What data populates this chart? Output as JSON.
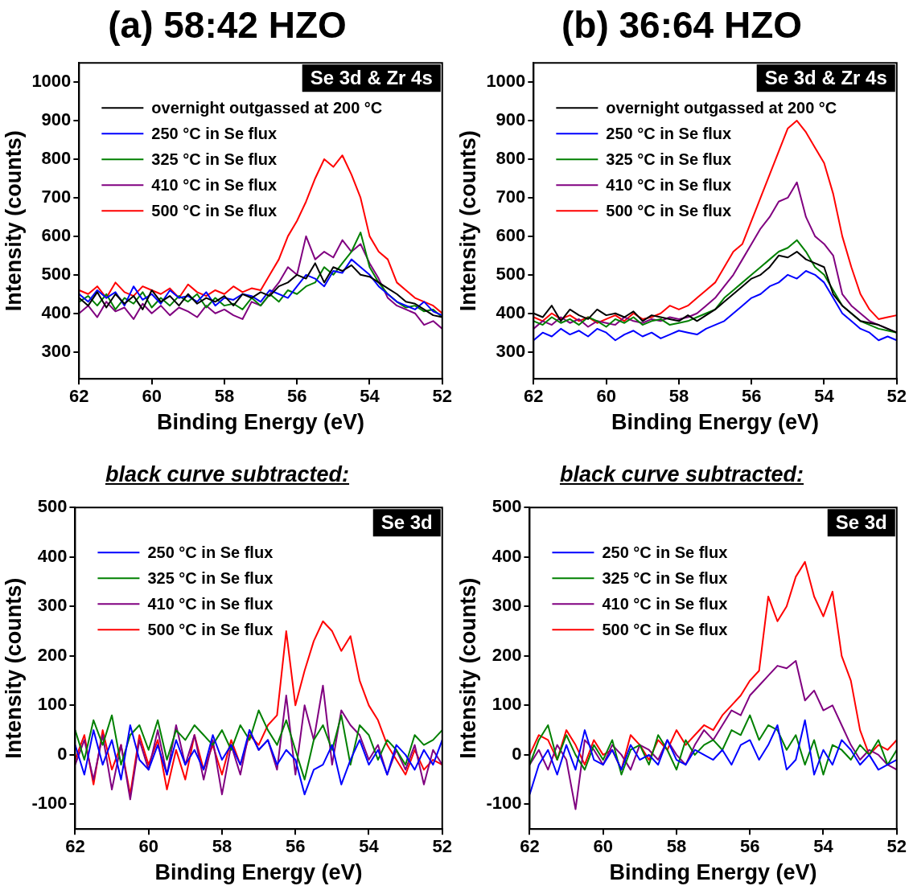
{
  "chart_data": [
    {
      "type": "line",
      "title": "(a) 58:42 HZO",
      "xlabel": "Binding Energy (eV)",
      "ylabel": "Intensity (counts)",
      "annotations": [
        "Se 3d & Zr 4s"
      ],
      "legend": "top left",
      "xlim": [
        62,
        52
      ],
      "xticks": [
        62,
        60,
        58,
        56,
        54,
        52
      ],
      "ylim": [
        230,
        1050
      ],
      "yticks": [
        300,
        400,
        500,
        600,
        700,
        800,
        900,
        1000
      ],
      "x": [
        62,
        61.75,
        61.5,
        61.25,
        61,
        60.75,
        60.5,
        60.25,
        60,
        59.75,
        59.5,
        59.25,
        59,
        58.75,
        58.5,
        58.25,
        58,
        57.75,
        57.5,
        57.25,
        57,
        56.75,
        56.5,
        56.25,
        56,
        55.75,
        55.5,
        55.25,
        55,
        54.75,
        54.5,
        54.25,
        54,
        53.75,
        53.5,
        53.25,
        53,
        52.75,
        52.5,
        52.25,
        52
      ],
      "series": [
        {
          "name": "overnight outgassed at 200 °C",
          "color": "#000000",
          "values": [
            440,
            420,
            455,
            415,
            450,
            425,
            445,
            410,
            460,
            430,
            445,
            420,
            450,
            425,
            440,
            430,
            445,
            420,
            450,
            440,
            455,
            445,
            470,
            480,
            500,
            490,
            530,
            480,
            520,
            510,
            525,
            500,
            495,
            480,
            465,
            450,
            430,
            425,
            410,
            395,
            390
          ]
        },
        {
          "name": "250 °C in Se flux",
          "color": "#0000ff",
          "values": [
            450,
            430,
            460,
            440,
            455,
            420,
            470,
            435,
            450,
            425,
            460,
            440,
            445,
            430,
            455,
            420,
            440,
            435,
            450,
            445,
            430,
            460,
            450,
            440,
            470,
            500,
            490,
            470,
            510,
            505,
            540,
            520,
            500,
            470,
            450,
            430,
            420,
            410,
            430,
            405,
            395
          ]
        },
        {
          "name": "325 °C in Se flux",
          "color": "#008000",
          "values": [
            430,
            445,
            420,
            450,
            410,
            440,
            425,
            455,
            415,
            440,
            420,
            445,
            430,
            450,
            415,
            440,
            420,
            425,
            410,
            440,
            420,
            450,
            430,
            460,
            450,
            470,
            480,
            520,
            500,
            530,
            560,
            610,
            520,
            480,
            450,
            430,
            415,
            420,
            405,
            410,
            390
          ]
        },
        {
          "name": "410 °C in Se flux",
          "color": "#800080",
          "values": [
            400,
            420,
            390,
            430,
            405,
            415,
            385,
            425,
            400,
            420,
            395,
            415,
            405,
            390,
            420,
            400,
            410,
            395,
            385,
            430,
            420,
            450,
            480,
            520,
            500,
            600,
            540,
            560,
            545,
            590,
            560,
            580,
            530,
            490,
            440,
            420,
            410,
            400,
            370,
            380,
            360
          ]
        },
        {
          "name": "500 °C in Se flux",
          "color": "#ff0000",
          "values": [
            460,
            450,
            470,
            440,
            480,
            455,
            445,
            470,
            460,
            450,
            465,
            440,
            475,
            455,
            445,
            460,
            450,
            470,
            455,
            465,
            460,
            500,
            540,
            600,
            640,
            690,
            750,
            800,
            780,
            810,
            760,
            700,
            600,
            560,
            540,
            480,
            460,
            440,
            430,
            420,
            400
          ]
        }
      ]
    },
    {
      "type": "line",
      "title": "(b) 36:64 HZO",
      "xlabel": "Binding Energy (eV)",
      "ylabel": "Intensity (counts)",
      "annotations": [
        "Se 3d & Zr 4s"
      ],
      "legend": "top left",
      "xlim": [
        62,
        52
      ],
      "xticks": [
        62,
        60,
        58,
        56,
        54,
        52
      ],
      "ylim": [
        230,
        1050
      ],
      "yticks": [
        300,
        400,
        500,
        600,
        700,
        800,
        900,
        1000
      ],
      "x": [
        62,
        61.75,
        61.5,
        61.25,
        61,
        60.75,
        60.5,
        60.25,
        60,
        59.75,
        59.5,
        59.25,
        59,
        58.75,
        58.5,
        58.25,
        58,
        57.75,
        57.5,
        57.25,
        57,
        56.75,
        56.5,
        56.25,
        56,
        55.75,
        55.5,
        55.25,
        55,
        54.75,
        54.5,
        54.25,
        54,
        53.75,
        53.5,
        53.25,
        53,
        52.75,
        52.5,
        52.25,
        52
      ],
      "series": [
        {
          "name": "overnight outgassed at 200 °C",
          "color": "#000000",
          "values": [
            400,
            390,
            420,
            380,
            410,
            395,
            385,
            410,
            395,
            400,
            390,
            405,
            380,
            395,
            390,
            385,
            380,
            395,
            380,
            395,
            410,
            430,
            450,
            470,
            490,
            500,
            520,
            550,
            545,
            560,
            540,
            530,
            520,
            450,
            420,
            400,
            380,
            375,
            370,
            360,
            350
          ]
        },
        {
          "name": "250 °C in Se flux",
          "color": "#0000ff",
          "values": [
            330,
            350,
            340,
            360,
            345,
            355,
            340,
            360,
            350,
            330,
            345,
            355,
            340,
            350,
            335,
            345,
            355,
            350,
            345,
            360,
            370,
            380,
            400,
            420,
            440,
            450,
            470,
            480,
            500,
            490,
            510,
            500,
            480,
            440,
            400,
            380,
            360,
            350,
            330,
            340,
            330
          ]
        },
        {
          "name": "325 °C in Se flux",
          "color": "#008000",
          "values": [
            380,
            370,
            390,
            375,
            385,
            370,
            390,
            380,
            365,
            385,
            375,
            390,
            370,
            380,
            385,
            370,
            375,
            380,
            390,
            400,
            410,
            440,
            460,
            480,
            500,
            520,
            540,
            560,
            570,
            590,
            560,
            520,
            500,
            460,
            420,
            400,
            380,
            370,
            360,
            355,
            350
          ]
        },
        {
          "name": "410 °C in Se flux",
          "color": "#800080",
          "values": [
            360,
            380,
            370,
            390,
            375,
            385,
            365,
            380,
            375,
            370,
            390,
            380,
            375,
            385,
            380,
            390,
            385,
            390,
            400,
            420,
            440,
            470,
            500,
            540,
            580,
            620,
            650,
            690,
            700,
            740,
            650,
            600,
            580,
            550,
            450,
            420,
            400,
            380,
            370,
            360,
            350
          ]
        },
        {
          "name": "500 °C in Se flux",
          "color": "#ff0000",
          "values": [
            390,
            380,
            400,
            385,
            395,
            380,
            390,
            375,
            385,
            395,
            380,
            400,
            385,
            390,
            400,
            420,
            410,
            420,
            440,
            460,
            480,
            520,
            560,
            580,
            640,
            700,
            760,
            820,
            880,
            900,
            870,
            830,
            790,
            710,
            600,
            520,
            450,
            410,
            385,
            390,
            395
          ]
        }
      ]
    },
    {
      "type": "line",
      "title": "black curve subtracted:",
      "xlabel": "Binding Energy (eV)",
      "ylabel": "Intensity (counts)",
      "annotations": [
        "Se 3d"
      ],
      "legend": "top left",
      "xlim": [
        62,
        52
      ],
      "xticks": [
        62,
        60,
        58,
        56,
        54,
        52
      ],
      "ylim": [
        -150,
        500
      ],
      "yticks": [
        -100,
        0,
        100,
        200,
        300,
        400,
        500
      ],
      "x": [
        62,
        61.75,
        61.5,
        61.25,
        61,
        60.75,
        60.5,
        60.25,
        60,
        59.75,
        59.5,
        59.25,
        59,
        58.75,
        58.5,
        58.25,
        58,
        57.75,
        57.5,
        57.25,
        57,
        56.75,
        56.5,
        56.25,
        56,
        55.75,
        55.5,
        55.25,
        55,
        54.75,
        54.5,
        54.25,
        54,
        53.75,
        53.5,
        53.25,
        53,
        52.75,
        52.5,
        52.25,
        52
      ],
      "series": [
        {
          "name": "250 °C in Se flux",
          "color": "#0000ff",
          "values": [
            20,
            -40,
            50,
            -20,
            30,
            -50,
            60,
            -10,
            -30,
            20,
            -40,
            30,
            -20,
            10,
            -30,
            40,
            -10,
            20,
            -20,
            50,
            10,
            30,
            -20,
            10,
            -10,
            -80,
            -30,
            -20,
            20,
            -60,
            -10,
            30,
            -20,
            10,
            -40,
            20,
            0,
            -30,
            10,
            -20,
            30
          ]
        },
        {
          "name": "325 °C in Se flux",
          "color": "#008000",
          "values": [
            50,
            -10,
            70,
            20,
            80,
            -20,
            40,
            60,
            10,
            70,
            -10,
            50,
            30,
            60,
            40,
            20,
            50,
            10,
            60,
            30,
            90,
            50,
            20,
            70,
            10,
            -50,
            30,
            60,
            10,
            80,
            -20,
            60,
            40,
            -10,
            30,
            10,
            -20,
            40,
            20,
            30,
            50
          ]
        },
        {
          "name": "410 °C in Se flux",
          "color": "#800080",
          "values": [
            -20,
            30,
            -50,
            40,
            -70,
            20,
            -90,
            30,
            -30,
            50,
            -40,
            60,
            -20,
            40,
            -50,
            30,
            -80,
            20,
            -40,
            50,
            10,
            30,
            -30,
            120,
            -40,
            100,
            30,
            140,
            -20,
            90,
            60,
            40,
            -10,
            20,
            -40,
            10,
            -30,
            20,
            -60,
            10,
            -20
          ]
        },
        {
          "name": "500 °C in Se flux",
          "color": "#ff0000",
          "values": [
            -10,
            40,
            -60,
            50,
            -30,
            20,
            -80,
            40,
            -20,
            30,
            -70,
            10,
            -50,
            40,
            -30,
            20,
            -40,
            30,
            -20,
            40,
            20,
            60,
            80,
            250,
            100,
            170,
            230,
            270,
            250,
            210,
            240,
            150,
            100,
            70,
            20,
            -10,
            -40,
            10,
            -30,
            -10,
            -20
          ]
        }
      ]
    },
    {
      "type": "line",
      "title": "black curve subtracted:",
      "xlabel": "Binding Energy (eV)",
      "ylabel": "Intensity (counts)",
      "annotations": [
        "Se 3d"
      ],
      "legend": "top left",
      "xlim": [
        62,
        52
      ],
      "xticks": [
        62,
        60,
        58,
        56,
        54,
        52
      ],
      "ylim": [
        -150,
        500
      ],
      "yticks": [
        -100,
        0,
        100,
        200,
        300,
        400,
        500
      ],
      "x": [
        62,
        61.75,
        61.5,
        61.25,
        61,
        60.75,
        60.5,
        60.25,
        60,
        59.75,
        59.5,
        59.25,
        59,
        58.75,
        58.5,
        58.25,
        58,
        57.75,
        57.5,
        57.25,
        57,
        56.75,
        56.5,
        56.25,
        56,
        55.75,
        55.5,
        55.25,
        55,
        54.75,
        54.5,
        54.25,
        54,
        53.75,
        53.5,
        53.25,
        53,
        52.75,
        52.5,
        52.25,
        52
      ],
      "series": [
        {
          "name": "250 °C in Se flux",
          "color": "#0000ff",
          "values": [
            -80,
            -20,
            10,
            -40,
            20,
            -30,
            50,
            -10,
            -20,
            10,
            -30,
            20,
            -10,
            0,
            -20,
            30,
            -10,
            -20,
            10,
            0,
            -10,
            10,
            -20,
            20,
            30,
            -10,
            20,
            60,
            -30,
            -10,
            70,
            -40,
            10,
            -20,
            30,
            10,
            -20,
            0,
            -30,
            -20,
            -10
          ]
        },
        {
          "name": "325 °C in Se flux",
          "color": "#008000",
          "values": [
            -20,
            30,
            60,
            -10,
            40,
            0,
            -30,
            20,
            -10,
            30,
            -40,
            10,
            20,
            -20,
            40,
            10,
            -30,
            30,
            0,
            20,
            30,
            10,
            50,
            40,
            80,
            30,
            60,
            50,
            10,
            40,
            -20,
            30,
            -40,
            20,
            10,
            -10,
            20,
            0,
            30,
            -20,
            10
          ]
        },
        {
          "name": "410 °C in Se flux",
          "color": "#800080",
          "values": [
            -20,
            10,
            -30,
            20,
            -10,
            -110,
            30,
            10,
            -20,
            20,
            0,
            -30,
            20,
            10,
            -10,
            30,
            0,
            -20,
            20,
            50,
            30,
            60,
            90,
            80,
            120,
            140,
            160,
            180,
            175,
            190,
            110,
            130,
            90,
            100,
            60,
            20,
            -10,
            10,
            0,
            -20,
            -30
          ]
        },
        {
          "name": "500 °C in Se flux",
          "color": "#ff0000",
          "values": [
            0,
            40,
            30,
            -10,
            50,
            20,
            -20,
            30,
            0,
            10,
            -30,
            40,
            20,
            -10,
            30,
            10,
            50,
            20,
            40,
            60,
            50,
            80,
            100,
            120,
            150,
            170,
            320,
            270,
            300,
            360,
            390,
            320,
            280,
            330,
            200,
            150,
            50,
            0,
            20,
            10,
            30
          ]
        }
      ]
    }
  ]
}
